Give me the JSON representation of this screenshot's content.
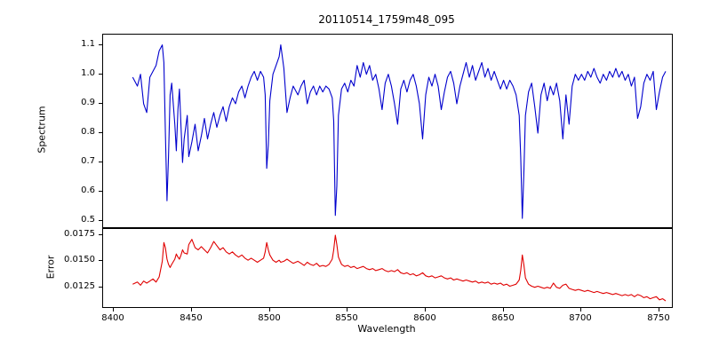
{
  "figure": {
    "background": "#ffffff",
    "axis_color": "#000000"
  },
  "chart_data": {
    "type": "line",
    "title": "20110514_1759m48_095",
    "xlabel": "Wavelength",
    "legend": "none",
    "grid": false,
    "xlim": [
      8393,
      8758
    ],
    "xticks": [
      8400,
      8450,
      8500,
      8550,
      8600,
      8650,
      8700,
      8750
    ],
    "xtick_labels": [
      "8400",
      "8450",
      "8500",
      "8550",
      "8600",
      "8650",
      "8700",
      "8750"
    ],
    "x": [
      8412,
      8415,
      8417,
      8419,
      8421,
      8423,
      8425,
      8427,
      8429,
      8431,
      8432,
      8433,
      8434,
      8435,
      8436,
      8437,
      8439,
      8440,
      8441,
      8442,
      8443,
      8444,
      8445,
      8447,
      8448,
      8450,
      8452,
      8454,
      8456,
      8458,
      8460,
      8462,
      8464,
      8466,
      8468,
      8470,
      8472,
      8474,
      8476,
      8478,
      8480,
      8482,
      8484,
      8486,
      8488,
      8490,
      8492,
      8494,
      8496,
      8497,
      8498,
      8499,
      8500,
      8502,
      8504,
      8506,
      8507,
      8509,
      8511,
      8513,
      8515,
      8518,
      8520,
      8522,
      8524,
      8526,
      8528,
      8530,
      8532,
      8534,
      8536,
      8538,
      8540,
      8541,
      8542,
      8543,
      8544,
      8546,
      8548,
      8550,
      8552,
      8554,
      8556,
      8558,
      8560,
      8562,
      8564,
      8566,
      8568,
      8570,
      8572,
      8574,
      8576,
      8578,
      8580,
      8582,
      8584,
      8586,
      8588,
      8590,
      8592,
      8594,
      8596,
      8598,
      8600,
      8602,
      8604,
      8606,
      8608,
      8610,
      8612,
      8614,
      8616,
      8618,
      8620,
      8622,
      8624,
      8626,
      8628,
      8630,
      8632,
      8634,
      8636,
      8638,
      8640,
      8642,
      8644,
      8646,
      8648,
      8650,
      8652,
      8654,
      8656,
      8658,
      8660,
      8661,
      8662,
      8663,
      8664,
      8666,
      8668,
      8670,
      8672,
      8674,
      8676,
      8678,
      8680,
      8682,
      8684,
      8686,
      8688,
      8690,
      8692,
      8694,
      8696,
      8698,
      8700,
      8702,
      8704,
      8706,
      8708,
      8710,
      8712,
      8714,
      8716,
      8718,
      8720,
      8722,
      8724,
      8726,
      8728,
      8730,
      8732,
      8734,
      8736,
      8738,
      8740,
      8742,
      8744,
      8746,
      8748,
      8750,
      8752,
      8754
    ],
    "subplots": [
      {
        "name": "spectrum",
        "ylabel": "Spectrum",
        "color": "#0000cd",
        "ylim": [
          0.48,
          1.135
        ],
        "yticks": [
          0.5,
          0.6,
          0.7,
          0.8,
          0.9,
          1.0,
          1.1
        ],
        "ytick_labels": [
          "0.5",
          "0.6",
          "0.7",
          "0.8",
          "0.9",
          "1.0",
          "1.1"
        ],
        "values": [
          0.99,
          0.96,
          1.0,
          0.9,
          0.87,
          0.99,
          1.01,
          1.03,
          1.08,
          1.1,
          1.04,
          0.8,
          0.57,
          0.72,
          0.93,
          0.97,
          0.83,
          0.74,
          0.88,
          0.95,
          0.82,
          0.7,
          0.78,
          0.86,
          0.72,
          0.77,
          0.83,
          0.74,
          0.79,
          0.85,
          0.78,
          0.83,
          0.87,
          0.82,
          0.86,
          0.89,
          0.84,
          0.89,
          0.92,
          0.9,
          0.94,
          0.96,
          0.92,
          0.96,
          0.99,
          1.01,
          0.98,
          1.01,
          0.99,
          0.93,
          0.68,
          0.76,
          0.91,
          1.0,
          1.03,
          1.06,
          1.1,
          1.02,
          0.87,
          0.92,
          0.96,
          0.93,
          0.96,
          0.98,
          0.9,
          0.94,
          0.96,
          0.93,
          0.96,
          0.94,
          0.96,
          0.95,
          0.92,
          0.84,
          0.52,
          0.62,
          0.86,
          0.95,
          0.97,
          0.94,
          0.98,
          0.96,
          1.03,
          0.99,
          1.04,
          1.0,
          1.03,
          0.98,
          1.0,
          0.95,
          0.88,
          0.97,
          1.0,
          0.96,
          0.9,
          0.83,
          0.95,
          0.98,
          0.94,
          0.98,
          1.0,
          0.96,
          0.9,
          0.78,
          0.93,
          0.99,
          0.96,
          1.0,
          0.96,
          0.88,
          0.94,
          0.99,
          1.01,
          0.97,
          0.9,
          0.96,
          1.0,
          1.04,
          0.99,
          1.03,
          0.98,
          1.01,
          1.04,
          0.99,
          1.02,
          0.98,
          1.01,
          0.98,
          0.95,
          0.98,
          0.95,
          0.98,
          0.96,
          0.93,
          0.86,
          0.72,
          0.51,
          0.66,
          0.86,
          0.94,
          0.97,
          0.89,
          0.8,
          0.93,
          0.97,
          0.91,
          0.96,
          0.93,
          0.97,
          0.91,
          0.78,
          0.93,
          0.83,
          0.96,
          1.0,
          0.98,
          1.0,
          0.98,
          1.01,
          0.99,
          1.02,
          0.99,
          0.97,
          1.0,
          0.98,
          1.01,
          0.99,
          1.02,
          0.99,
          1.01,
          0.98,
          1.0,
          0.96,
          0.99,
          0.85,
          0.89,
          0.97,
          1.0,
          0.98,
          1.01,
          0.88,
          0.94,
          0.99,
          1.01
        ]
      },
      {
        "name": "error",
        "ylabel": "Error",
        "color": "#e00000",
        "ylim": [
          0.0106,
          0.0181
        ],
        "yticks": [
          0.0125,
          0.015,
          0.0175
        ],
        "ytick_labels": [
          "0.0125",
          "0.0150",
          "0.0175"
        ],
        "values": [
          0.0128,
          0.013,
          0.0127,
          0.0131,
          0.0129,
          0.0131,
          0.0133,
          0.013,
          0.0135,
          0.015,
          0.0168,
          0.0163,
          0.0152,
          0.0147,
          0.0144,
          0.0147,
          0.0152,
          0.0157,
          0.0154,
          0.0152,
          0.0156,
          0.0161,
          0.0158,
          0.0157,
          0.0166,
          0.0171,
          0.0163,
          0.0161,
          0.0164,
          0.0161,
          0.0158,
          0.0163,
          0.0169,
          0.0165,
          0.0161,
          0.0163,
          0.0159,
          0.0157,
          0.0159,
          0.0156,
          0.0154,
          0.0156,
          0.0153,
          0.0151,
          0.0153,
          0.0151,
          0.0149,
          0.0151,
          0.0153,
          0.0159,
          0.0168,
          0.0161,
          0.0156,
          0.0151,
          0.0149,
          0.0151,
          0.0149,
          0.015,
          0.0152,
          0.015,
          0.0148,
          0.015,
          0.0148,
          0.0146,
          0.0149,
          0.0147,
          0.0146,
          0.0148,
          0.0145,
          0.0146,
          0.0145,
          0.0147,
          0.0152,
          0.0161,
          0.0175,
          0.0166,
          0.0154,
          0.0147,
          0.0145,
          0.0146,
          0.0144,
          0.0145,
          0.0143,
          0.0144,
          0.0145,
          0.0143,
          0.0142,
          0.0143,
          0.0141,
          0.0142,
          0.0143,
          0.0141,
          0.014,
          0.0141,
          0.014,
          0.0142,
          0.0139,
          0.0138,
          0.0139,
          0.0137,
          0.0138,
          0.0136,
          0.0137,
          0.0139,
          0.0136,
          0.0135,
          0.0136,
          0.0134,
          0.0135,
          0.0136,
          0.0134,
          0.0133,
          0.0134,
          0.0132,
          0.0133,
          0.0132,
          0.0131,
          0.0132,
          0.0131,
          0.013,
          0.0131,
          0.0129,
          0.013,
          0.0129,
          0.013,
          0.0128,
          0.0129,
          0.0128,
          0.0129,
          0.0127,
          0.0128,
          0.0126,
          0.0127,
          0.0128,
          0.0132,
          0.0141,
          0.0156,
          0.0147,
          0.0134,
          0.0128,
          0.0126,
          0.0125,
          0.0126,
          0.0125,
          0.0124,
          0.0125,
          0.0124,
          0.0129,
          0.0125,
          0.0124,
          0.0127,
          0.0128,
          0.0124,
          0.0123,
          0.0122,
          0.0123,
          0.0122,
          0.0121,
          0.0122,
          0.0121,
          0.012,
          0.0121,
          0.012,
          0.0119,
          0.012,
          0.0119,
          0.0118,
          0.0119,
          0.0118,
          0.0117,
          0.0118,
          0.0117,
          0.0118,
          0.0116,
          0.0118,
          0.0117,
          0.0115,
          0.0116,
          0.0114,
          0.0115,
          0.0116,
          0.0113,
          0.0114,
          0.0112
        ]
      }
    ]
  }
}
